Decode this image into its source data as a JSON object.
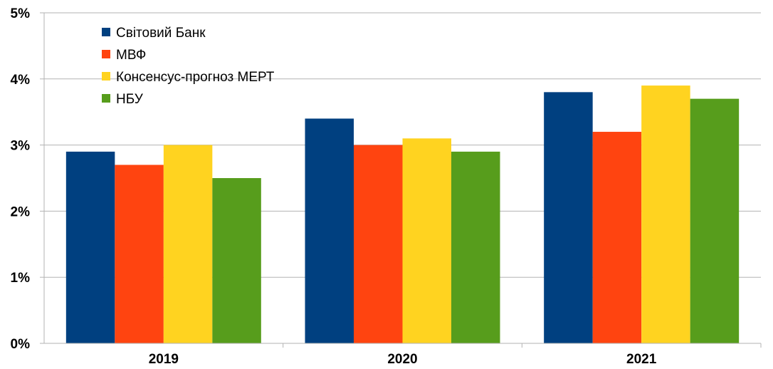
{
  "chart_data": {
    "type": "bar",
    "categories": [
      "2019",
      "2020",
      "2021"
    ],
    "series": [
      {
        "name": "Світовий Банк",
        "color": "#004080",
        "values": [
          2.9,
          3.4,
          3.8
        ]
      },
      {
        "name": "МВФ",
        "color": "#FF4410",
        "values": [
          2.7,
          3.0,
          3.2
        ]
      },
      {
        "name": "Консенсус-прогноз МЕРТ",
        "color": "#FFD320",
        "values": [
          3.0,
          3.1,
          3.9
        ]
      },
      {
        "name": "НБУ",
        "color": "#579D1C",
        "values": [
          2.5,
          2.9,
          3.7
        ]
      }
    ],
    "yticks": [
      0,
      1,
      2,
      3,
      4,
      5
    ],
    "ytick_labels": [
      "0%",
      "1%",
      "2%",
      "3%",
      "4%",
      "5%"
    ],
    "ylim": [
      0,
      5
    ],
    "grid": true,
    "legend_position": "top-left",
    "title": "",
    "xlabel": "",
    "ylabel": ""
  }
}
